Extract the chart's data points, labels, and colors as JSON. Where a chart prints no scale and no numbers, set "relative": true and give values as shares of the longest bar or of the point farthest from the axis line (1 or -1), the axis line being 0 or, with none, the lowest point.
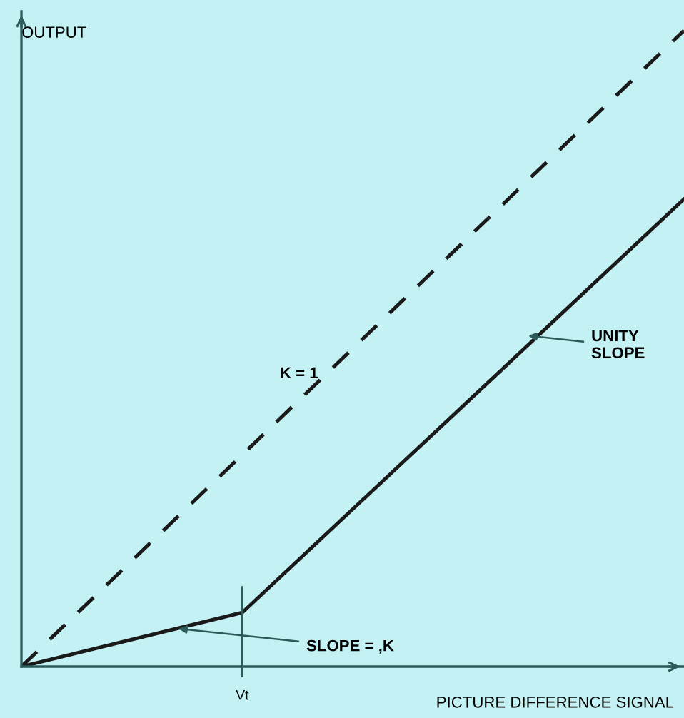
{
  "chart_data": {
    "type": "line",
    "relative": true,
    "xlabel": "PICTURE DIFFERENCE SIGNAL",
    "ylabel": "OUTPUT",
    "categories": [
      null,
      null,
      null,
      null
    ],
    "series": [
      {
        "color": "#1a1a1a",
        "line_style": "dashed",
        "values": [
          0,
          0.333,
          0.667,
          1
        ]
      },
      {
        "color": "#1a1a1a",
        "line_style": "solid",
        "values": [
          0,
          0.085,
          0.41,
          0.735
        ]
      }
    ],
    "annotations": [
      "K = 1",
      "UNITY SLOPE",
      "SLOPE = ,K",
      "Vt"
    ],
    "legend": false,
    "marker": "none"
  }
}
